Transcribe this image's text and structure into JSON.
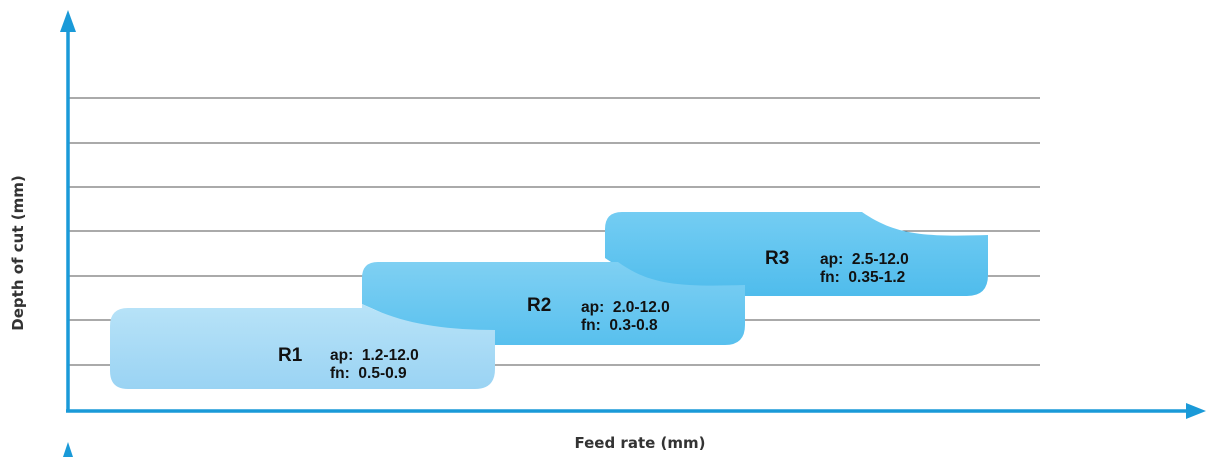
{
  "chart_data": {
    "type": "area",
    "xlabel": "Feed rate (mm)",
    "ylabel": "Depth of cut (mm)",
    "grid": true,
    "regions": [
      {
        "name": "R1",
        "ap": "1.2-12.0",
        "fn": "0.5-0.9",
        "color": "#a5d9f5",
        "xrange": [
          0.5,
          0.9
        ],
        "yrange": [
          1.2,
          12.0
        ]
      },
      {
        "name": "R2",
        "ap": "2.0-12.0",
        "fn": "0.3-0.8",
        "color": "#66c6ef",
        "xrange": [
          0.3,
          0.8
        ],
        "yrange": [
          2.0,
          12.0
        ]
      },
      {
        "name": "R3",
        "ap": "2.5-12.0",
        "fn": "0.35-1.2",
        "color": "#56bfee",
        "xrange": [
          0.35,
          1.2
        ],
        "yrange": [
          2.5,
          12.0
        ]
      }
    ]
  },
  "colors": {
    "axis": "#1a9ad8",
    "gridline": "#555555",
    "label_text": "#111111"
  }
}
